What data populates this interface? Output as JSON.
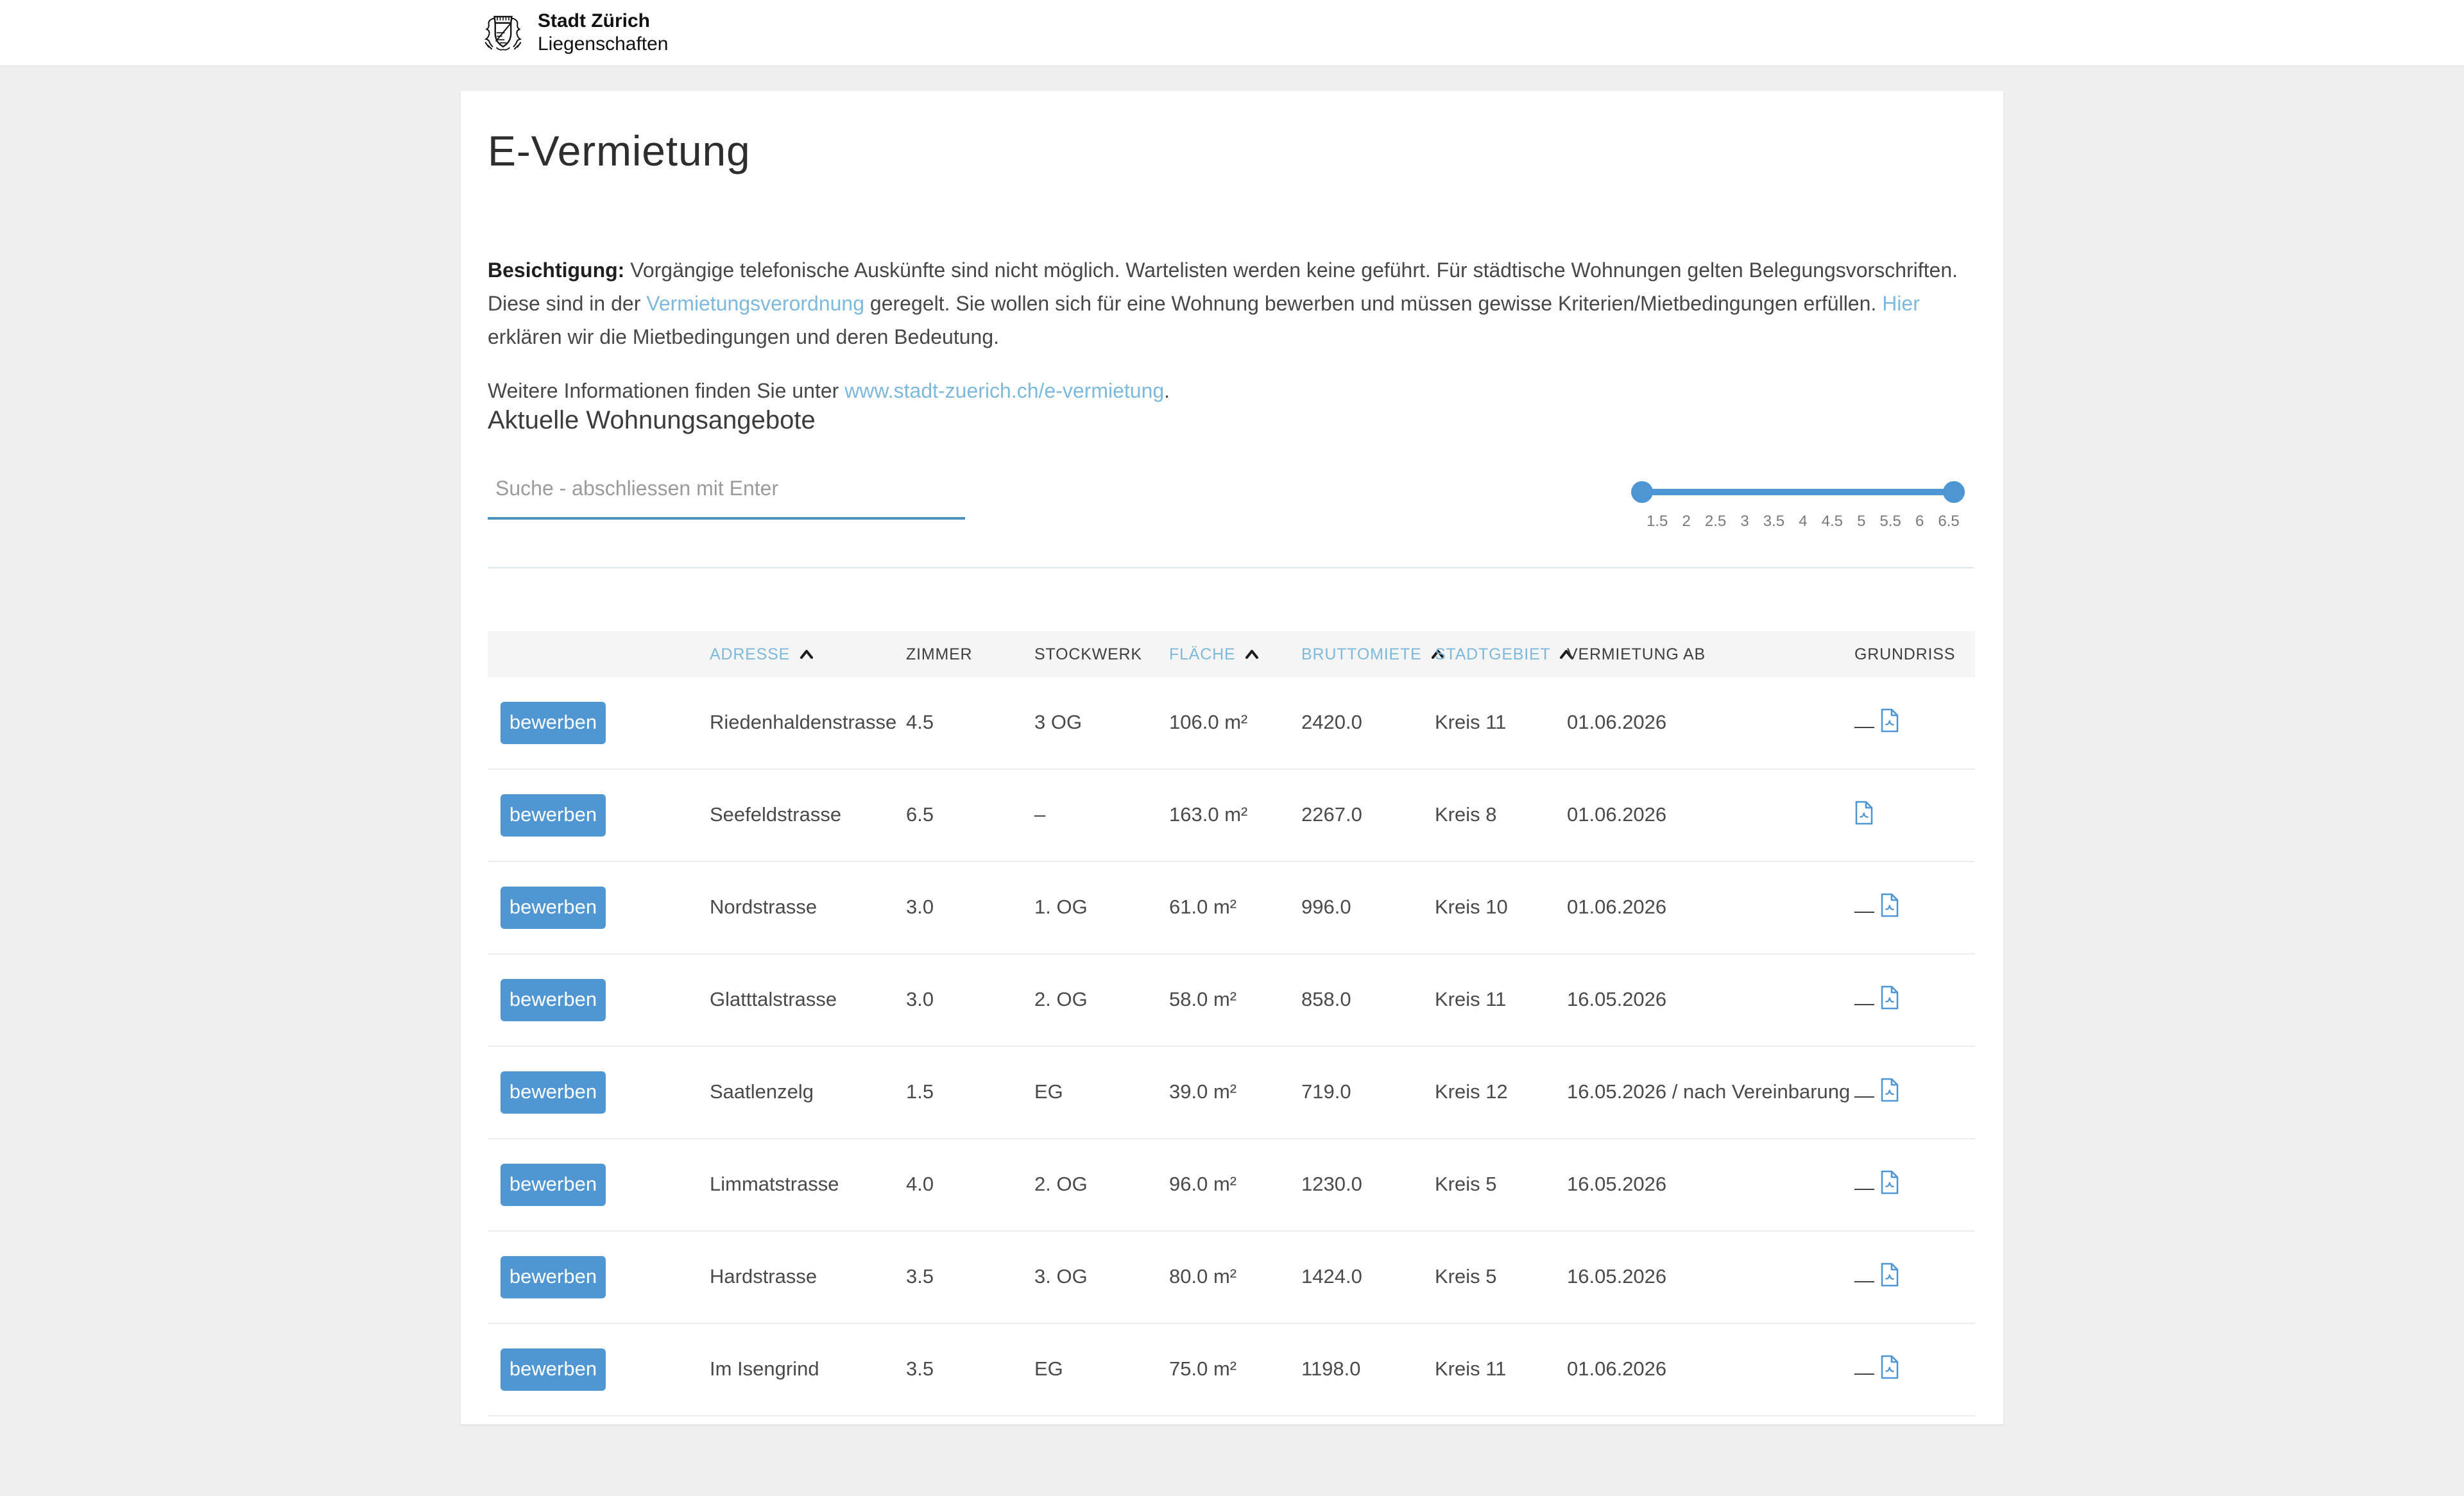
{
  "header": {
    "logo_title": "Stadt Zürich",
    "logo_subtitle": "Liegenschaften"
  },
  "page": {
    "title": "E-Vermietung",
    "intro": {
      "bold_label": "Besichtigung:",
      "text_1": " Vorgängige telefonische Auskünfte sind nicht möglich. Wartelisten werden keine geführt. Für städtische Wohnungen gelten Belegungsvorschriften. Diese sind in der ",
      "link_1": "Vermietungsverordnung",
      "text_2": " geregelt. Sie wollen sich für eine Wohnung bewerben und müssen gewisse Kriterien/Mietbedingungen erfüllen. ",
      "link_2": "Hier",
      "text_3": " erklären wir die Mietbedingungen und deren Bedeutung."
    },
    "info": {
      "text": "Weitere Informationen finden Sie unter ",
      "link": "www.stadt-zuerich.ch/e-vermietung",
      "suffix": "."
    },
    "section_heading": "Aktuelle Wohnungsangebote"
  },
  "search": {
    "placeholder": "Suche - abschliessen mit Enter",
    "value": ""
  },
  "slider": {
    "labels": [
      "1.5",
      "2",
      "2.5",
      "3",
      "3.5",
      "4",
      "4.5",
      "5",
      "5.5",
      "6",
      "6.5"
    ],
    "selected_min": "1.5",
    "selected_max": "6.5"
  },
  "table": {
    "apply_label": "bewerben",
    "columns": [
      {
        "key": "adresse",
        "label": "ADRESSE",
        "sorted": true
      },
      {
        "key": "zimmer",
        "label": "ZIMMER",
        "sorted": false
      },
      {
        "key": "stockwerk",
        "label": "STOCKWERK",
        "sorted": false
      },
      {
        "key": "flaeche",
        "label": "FLÄCHE",
        "sorted": true
      },
      {
        "key": "bruttomiete",
        "label": "BRUTTOMIETE",
        "sorted": true
      },
      {
        "key": "stadtgebiet",
        "label": "STADTGEBIET",
        "sorted": true
      },
      {
        "key": "vermietung-ab",
        "label": "VERMIETUNG AB",
        "sorted": false
      },
      {
        "key": "grundriss",
        "label": "GRUNDRISS",
        "sorted": false
      }
    ],
    "rows": [
      {
        "adresse": "Riedenhaldenstrasse",
        "zimmer": "4.5",
        "stockwerk": "3 OG",
        "flaeche": "106.0 m²",
        "bruttomiete": "2420.0",
        "stadtgebiet": "Kreis 11",
        "vermietung_ab": "01.06.2026",
        "grundriss": "—"
      },
      {
        "adresse": "Seefeldstrasse",
        "zimmer": "6.5",
        "stockwerk": "–",
        "flaeche": "163.0 m²",
        "bruttomiete": "2267.0",
        "stadtgebiet": "Kreis 8",
        "vermietung_ab": "01.06.2026",
        "grundriss": "pdf"
      },
      {
        "adresse": "Nordstrasse",
        "zimmer": "3.0",
        "stockwerk": "1. OG",
        "flaeche": "61.0 m²",
        "bruttomiete": "996.0",
        "stadtgebiet": "Kreis 10",
        "vermietung_ab": "01.06.2026",
        "grundriss": "—"
      },
      {
        "adresse": "Glatttalstrasse",
        "zimmer": "3.0",
        "stockwerk": "2. OG",
        "flaeche": "58.0 m²",
        "bruttomiete": "858.0",
        "stadtgebiet": "Kreis 11",
        "vermietung_ab": "16.05.2026",
        "grundriss": "—"
      },
      {
        "adresse": "Saatlenzelg",
        "zimmer": "1.5",
        "stockwerk": "EG",
        "flaeche": "39.0 m²",
        "bruttomiete": "719.0",
        "stadtgebiet": "Kreis 12",
        "vermietung_ab": "16.05.2026 / nach Vereinbarung",
        "grundriss": "—"
      },
      {
        "adresse": "Limmatstrasse",
        "zimmer": "4.0",
        "stockwerk": "2. OG",
        "flaeche": "96.0 m²",
        "bruttomiete": "1230.0",
        "stadtgebiet": "Kreis 5",
        "vermietung_ab": "16.05.2026",
        "grundriss": "—"
      },
      {
        "adresse": "Hardstrasse",
        "zimmer": "3.5",
        "stockwerk": "3. OG",
        "flaeche": "80.0 m²",
        "bruttomiete": "1424.0",
        "stadtgebiet": "Kreis 5",
        "vermietung_ab": "16.05.2026",
        "grundriss": "—"
      },
      {
        "adresse": "Im Isengrind",
        "zimmer": "3.5",
        "stockwerk": "EG",
        "flaeche": "75.0 m²",
        "bruttomiete": "1198.0",
        "stadtgebiet": "Kreis 11",
        "vermietung_ab": "01.06.2026",
        "grundriss": "—"
      }
    ]
  },
  "icons": {
    "sort_caret": "chevron-up",
    "grundriss_file": "file-pdf"
  },
  "colors": {
    "accent_blue": "#4f96d2",
    "link_blue": "#7db9dc",
    "underline_blue": "#4d90c0",
    "page_background": "#efefef"
  }
}
